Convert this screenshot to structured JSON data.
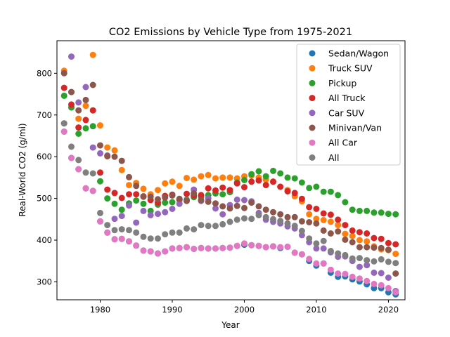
{
  "chart_data": {
    "type": "scatter",
    "title": "CO2 Emissions by Vehicle Type from 1975-2021",
    "xlabel": "Year",
    "ylabel": "Real-World CO2 (g/mi)",
    "xlim": [
      1974,
      2022.3
    ],
    "ylim": [
      257,
      878
    ],
    "xticks": [
      1980,
      1990,
      2000,
      2010,
      2020
    ],
    "yticks": [
      300,
      400,
      500,
      600,
      700,
      800
    ],
    "grid": false,
    "legend_position": "top-right",
    "x": [
      1975,
      1976,
      1977,
      1978,
      1979,
      1980,
      1981,
      1982,
      1983,
      1984,
      1985,
      1986,
      1987,
      1988,
      1989,
      1990,
      1991,
      1992,
      1993,
      1994,
      1995,
      1996,
      1997,
      1998,
      1999,
      2000,
      2001,
      2002,
      2003,
      2004,
      2005,
      2006,
      2007,
      2008,
      2009,
      2010,
      2011,
      2012,
      2013,
      2014,
      2015,
      2016,
      2017,
      2018,
      2019,
      2020,
      2021
    ],
    "series": [
      {
        "name": "Sedan/Wagon",
        "color": "#1f77b4",
        "values": [
          660,
          597,
          570,
          524,
          518,
          445,
          418,
          402,
          403,
          397,
          387,
          375,
          373,
          368,
          373,
          380,
          381,
          383,
          379,
          381,
          380,
          380,
          381,
          382,
          386,
          389,
          388,
          386,
          383,
          385,
          381,
          384,
          370,
          366,
          350,
          339,
          344,
          322,
          312,
          313,
          306,
          301,
          294,
          285,
          285,
          275,
          270
        ]
      },
      {
        "name": "Truck SUV",
        "color": "#ff7f0e",
        "values": [
          806,
          755,
          691,
          722,
          844,
          675,
          622,
          615,
          568,
          532,
          537,
          523,
          510,
          520,
          536,
          540,
          530,
          549,
          545,
          553,
          556,
          548,
          550,
          550,
          548,
          553,
          555,
          550,
          545,
          540,
          528,
          520,
          505,
          493,
          462,
          451,
          448,
          444,
          436,
          415,
          410,
          400,
          397,
          385,
          378,
          376,
          367
        ]
      },
      {
        "name": "Pickup",
        "color": "#2ca02c",
        "values": [
          746,
          718,
          655,
          668,
          673,
          541,
          500,
          487,
          473,
          488,
          495,
          487,
          470,
          485,
          490,
          491,
          497,
          497,
          503,
          504,
          508,
          512,
          510,
          515,
          538,
          544,
          558,
          565,
          553,
          566,
          560,
          550,
          548,
          538,
          525,
          528,
          516,
          516,
          508,
          491,
          473,
          470,
          470,
          466,
          466,
          463,
          462
        ]
      },
      {
        "name": "All Truck",
        "color": "#d62728",
        "values": [
          765,
          725,
          670,
          688,
          711,
          562,
          521,
          513,
          501,
          510,
          510,
          505,
          496,
          490,
          506,
          509,
          497,
          511,
          507,
          508,
          524,
          519,
          526,
          520,
          536,
          527,
          540,
          543,
          532,
          540,
          528,
          517,
          513,
          499,
          479,
          475,
          464,
          461,
          449,
          436,
          423,
          419,
          416,
          405,
          403,
          393,
          390
        ]
      },
      {
        "name": "Car SUV",
        "color": "#9467bd",
        "values": [
          680,
          840,
          730,
          767,
          622,
          608,
          603,
          451,
          458,
          483,
          442,
          470,
          460,
          463,
          467,
          475,
          487,
          495,
          521,
          494,
          500,
          476,
          462,
          484,
          497,
          496,
          493,
          465,
          449,
          444,
          440,
          433,
          428,
          412,
          395,
          380,
          380,
          371,
          360,
          361,
          350,
          336,
          340,
          322,
          321,
          310,
          278
        ]
      },
      {
        "name": "Minivan/Van",
        "color": "#8c564b",
        "values": [
          800,
          755,
          711,
          736,
          772,
          627,
          601,
          600,
          590,
          551,
          530,
          504,
          504,
          498,
          502,
          507,
          499,
          494,
          512,
          496,
          492,
          488,
          481,
          476,
          482,
          477,
          490,
          481,
          473,
          467,
          462,
          455,
          455,
          445,
          443,
          440,
          423,
          416,
          421,
          401,
          395,
          383,
          383,
          382,
          381,
          377,
          320
        ]
      },
      {
        "name": "All Car",
        "color": "#e377c2",
        "values": [
          660,
          597,
          570,
          524,
          518,
          445,
          418,
          402,
          403,
          397,
          387,
          375,
          373,
          368,
          373,
          380,
          381,
          383,
          379,
          381,
          380,
          380,
          381,
          382,
          386,
          392,
          388,
          386,
          383,
          385,
          383,
          384,
          370,
          366,
          355,
          344,
          344,
          329,
          320,
          319,
          312,
          308,
          302,
          295,
          292,
          285,
          275
        ]
      },
      {
        "name": "All",
        "color": "#7f7f7f",
        "values": [
          680,
          624,
          592,
          562,
          560,
          465,
          436,
          424,
          426,
          424,
          418,
          408,
          404,
          404,
          414,
          418,
          418,
          428,
          426,
          436,
          434,
          434,
          438,
          444,
          449,
          452,
          451,
          460,
          455,
          450,
          446,
          440,
          434,
          422,
          404,
          392,
          398,
          374,
          368,
          364,
          356,
          357,
          352,
          349,
          354,
          348,
          345
        ]
      }
    ]
  }
}
